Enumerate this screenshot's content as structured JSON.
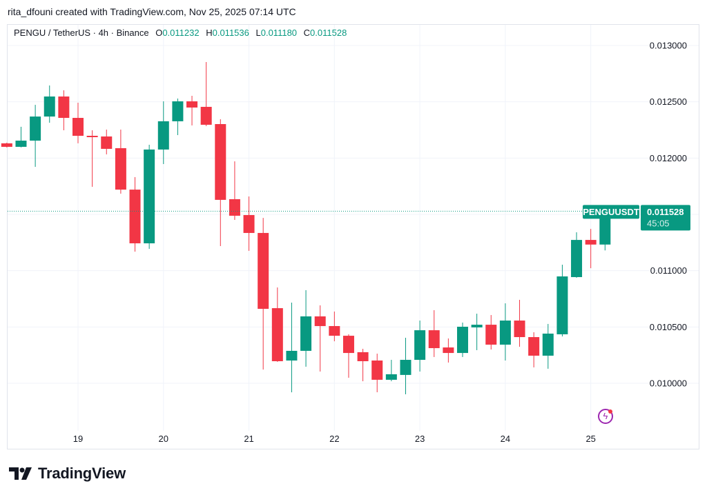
{
  "credit": "rita_dfouni created with TradingView.com, Nov 25, 2025 07:14 UTC",
  "legend": {
    "symbol": "PENGU / TetherUS · 4h · Binance",
    "o_label": "O",
    "o": "0.011232",
    "h_label": "H",
    "h": "0.011536",
    "l_label": "L",
    "l": "0.011180",
    "c_label": "C",
    "c": "0.011528"
  },
  "price_label": {
    "ticker": "PENGUUSDT",
    "price": "0.011528",
    "countdown": "45:05"
  },
  "logo": {
    "text": "TradingView",
    "mark": "TV"
  },
  "icons": {
    "bolt": "lightning-icon"
  },
  "colors": {
    "up": "#089981",
    "down": "#F23645",
    "grid": "#f0f3fa",
    "text": "#131722"
  },
  "chart_data": {
    "type": "candlestick",
    "title": "PENGU / TetherUS · 4h · Binance",
    "interval_hours": 4,
    "ylim": [
      0.00972,
      0.01305
    ],
    "y_ticks": [
      "0.013000",
      "0.012500",
      "0.012000",
      "0.011500",
      "0.011000",
      "0.010500",
      "0.010000"
    ],
    "x_ticks": [
      {
        "label": "19",
        "date": "2025-11-19"
      },
      {
        "label": "20",
        "date": "2025-11-20"
      },
      {
        "label": "21",
        "date": "2025-11-21"
      },
      {
        "label": "22",
        "date": "2025-11-22"
      },
      {
        "label": "23",
        "date": "2025-11-23"
      },
      {
        "label": "24",
        "date": "2025-11-24"
      },
      {
        "label": "25",
        "date": "2025-11-25"
      }
    ],
    "last_price": 0.011528,
    "grid": true,
    "columns": [
      "time",
      "open",
      "high",
      "low",
      "close"
    ],
    "candles": [
      [
        "2025-11-18 04:00",
        0.012131,
        0.012137,
        0.012094,
        0.0121
      ],
      [
        "2025-11-18 08:00",
        0.0121,
        0.012278,
        0.012095,
        0.012155
      ],
      [
        "2025-11-18 12:00",
        0.012155,
        0.012473,
        0.011922,
        0.012369
      ],
      [
        "2025-11-18 16:00",
        0.012369,
        0.012645,
        0.012314,
        0.012547
      ],
      [
        "2025-11-18 20:00",
        0.012547,
        0.012602,
        0.012247,
        0.012357
      ],
      [
        "2025-11-19 00:00",
        0.012357,
        0.012492,
        0.012131,
        0.012198
      ],
      [
        "2025-11-19 04:00",
        0.012198,
        0.012247,
        0.011745,
        0.012186
      ],
      [
        "2025-11-19 08:00",
        0.012192,
        0.012253,
        0.012033,
        0.012082
      ],
      [
        "2025-11-19 12:00",
        0.012088,
        0.012253,
        0.011684,
        0.01172
      ],
      [
        "2025-11-19 16:00",
        0.01172,
        0.011831,
        0.011169,
        0.011243
      ],
      [
        "2025-11-19 20:00",
        0.011243,
        0.012118,
        0.011194,
        0.012076
      ],
      [
        "2025-11-20 00:00",
        0.012076,
        0.012504,
        0.011947,
        0.012327
      ],
      [
        "2025-11-20 04:00",
        0.012327,
        0.012529,
        0.012204,
        0.012504
      ],
      [
        "2025-11-20 08:00",
        0.012504,
        0.012553,
        0.01229,
        0.012449
      ],
      [
        "2025-11-20 12:00",
        0.012455,
        0.012853,
        0.012284,
        0.012296
      ],
      [
        "2025-11-20 16:00",
        0.012302,
        0.012345,
        0.011218,
        0.011629
      ],
      [
        "2025-11-20 20:00",
        0.011635,
        0.011971,
        0.011451,
        0.011488
      ],
      [
        "2025-11-21 00:00",
        0.011494,
        0.011659,
        0.011176,
        0.011335
      ],
      [
        "2025-11-21 04:00",
        0.011335,
        0.011469,
        0.010122,
        0.010661
      ],
      [
        "2025-11-21 08:00",
        0.010667,
        0.010851,
        0.01019,
        0.010196
      ],
      [
        "2025-11-21 12:00",
        0.010202,
        0.010716,
        0.00992,
        0.010288
      ],
      [
        "2025-11-21 16:00",
        0.010288,
        0.010827,
        0.010147,
        0.010594
      ],
      [
        "2025-11-21 20:00",
        0.010594,
        0.010692,
        0.010104,
        0.010508
      ],
      [
        "2025-11-22 00:00",
        0.010508,
        0.010637,
        0.010373,
        0.010422
      ],
      [
        "2025-11-22 04:00",
        0.010422,
        0.010435,
        0.010049,
        0.010269
      ],
      [
        "2025-11-22 08:00",
        0.010276,
        0.010306,
        0.010018,
        0.010196
      ],
      [
        "2025-11-22 12:00",
        0.010202,
        0.010263,
        0.00992,
        0.010031
      ],
      [
        "2025-11-22 16:00",
        0.010031,
        0.010208,
        0.010018,
        0.01008
      ],
      [
        "2025-11-22 20:00",
        0.010074,
        0.010404,
        0.009902,
        0.010208
      ],
      [
        "2025-11-23 00:00",
        0.010208,
        0.010557,
        0.010104,
        0.010471
      ],
      [
        "2025-11-23 04:00",
        0.010471,
        0.010649,
        0.010233,
        0.010312
      ],
      [
        "2025-11-23 08:00",
        0.010318,
        0.010398,
        0.010184,
        0.010269
      ],
      [
        "2025-11-23 12:00",
        0.010269,
        0.010539,
        0.010233,
        0.010502
      ],
      [
        "2025-11-23 16:00",
        0.010496,
        0.010618,
        0.010294,
        0.01052
      ],
      [
        "2025-11-23 20:00",
        0.01052,
        0.010606,
        0.0103,
        0.010343
      ],
      [
        "2025-11-24 00:00",
        0.010343,
        0.01071,
        0.010202,
        0.010557
      ],
      [
        "2025-11-24 04:00",
        0.010557,
        0.010741,
        0.010324,
        0.01041
      ],
      [
        "2025-11-24 08:00",
        0.01041,
        0.010453,
        0.010141,
        0.010245
      ],
      [
        "2025-11-24 12:00",
        0.010245,
        0.010527,
        0.010129,
        0.010441
      ],
      [
        "2025-11-24 16:00",
        0.010435,
        0.011053,
        0.010416,
        0.010949
      ],
      [
        "2025-11-24 20:00",
        0.010943,
        0.011341,
        0.010937,
        0.011273
      ],
      [
        "2025-11-25 00:00",
        0.011273,
        0.011371,
        0.011022,
        0.011232
      ],
      [
        "2025-11-25 04:00",
        0.011232,
        0.011536,
        0.01118,
        0.011528
      ]
    ]
  }
}
